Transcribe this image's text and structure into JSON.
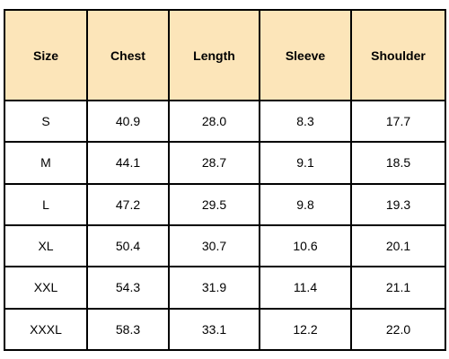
{
  "table": {
    "columns": [
      "Size",
      "Chest",
      "Length",
      "Sleeve",
      "Shoulder"
    ],
    "rows": [
      [
        "S",
        "40.9",
        "28.0",
        "8.3",
        "17.7"
      ],
      [
        "M",
        "44.1",
        "28.7",
        "9.1",
        "18.5"
      ],
      [
        "L",
        "47.2",
        "29.5",
        "9.8",
        "19.3"
      ],
      [
        "XL",
        "50.4",
        "30.7",
        "10.6",
        "20.1"
      ],
      [
        "XXL",
        "54.3",
        "31.9",
        "11.4",
        "21.1"
      ],
      [
        "XXXL",
        "58.3",
        "33.1",
        "12.2",
        "22.0"
      ]
    ]
  },
  "colors": {
    "header_background": "#fce5b9",
    "border": "#000000",
    "text": "#000000"
  }
}
